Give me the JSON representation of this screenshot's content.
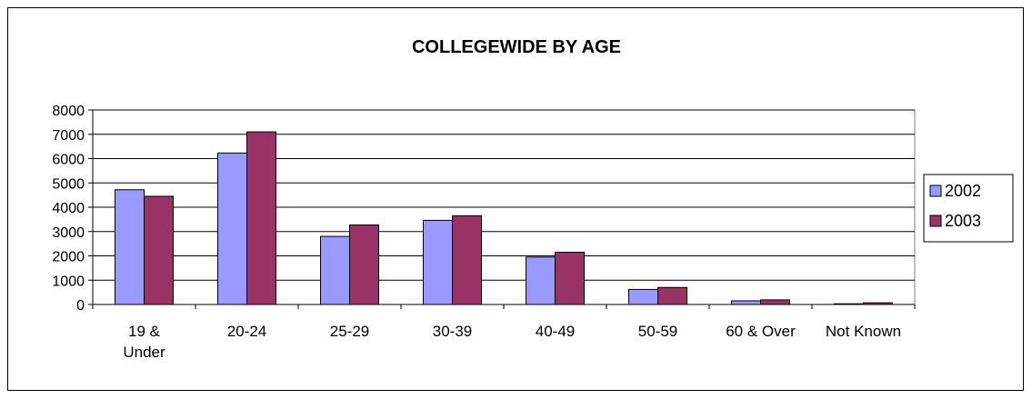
{
  "chart_data": {
    "type": "bar",
    "title": "COLLEGEWIDE BY AGE",
    "xlabel": "",
    "ylabel": "",
    "categories": [
      "19 & Under",
      "20-24",
      "25-29",
      "30-39",
      "40-49",
      "50-59",
      "60 & Over",
      "Not Known"
    ],
    "category_label_lines": [
      [
        "19 &",
        "Under"
      ],
      [
        "20-24"
      ],
      [
        "25-29"
      ],
      [
        "30-39"
      ],
      [
        "40-49"
      ],
      [
        "50-59"
      ],
      [
        "60 & Over"
      ],
      [
        "Not Known"
      ]
    ],
    "series": [
      {
        "name": "2002",
        "color": "#9999ff",
        "values": [
          4720,
          6230,
          2800,
          3460,
          1950,
          620,
          150,
          30
        ]
      },
      {
        "name": "2003",
        "color": "#993366",
        "values": [
          4450,
          7100,
          3270,
          3650,
          2150,
          700,
          190,
          70
        ]
      }
    ],
    "ylim": [
      0,
      8000
    ],
    "yticks": [
      0,
      1000,
      2000,
      3000,
      4000,
      5000,
      6000,
      7000,
      8000
    ],
    "grid": true,
    "legend_position": "right"
  }
}
